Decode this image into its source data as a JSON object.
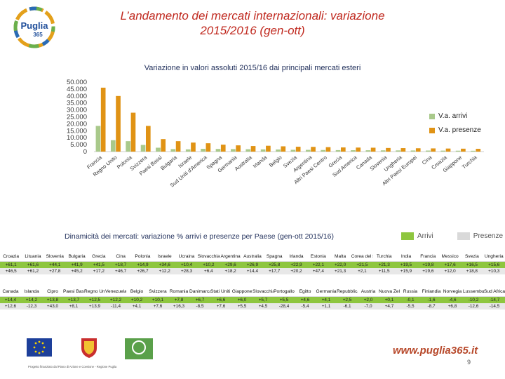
{
  "header": {
    "title_line1": "L’andamento dei mercati internazionali: variazione",
    "title_line2": "2015/2016 (gen-ott)"
  },
  "logo": {
    "text": "Puglia",
    "sub": "365"
  },
  "chart_data": {
    "type": "bar",
    "title": "Variazione in valori assoluti 2015/16 dai principali mercati esteri",
    "xlabel": "",
    "ylabel": "",
    "ylim": [
      0,
      50000
    ],
    "yticks": [
      "50.000",
      "45.000",
      "40.000",
      "35.000",
      "30.000",
      "25.000",
      "20.000",
      "15.000",
      "10.000",
      "5.000",
      "0"
    ],
    "grid": false,
    "legend_position": "right",
    "categories": [
      "Francia",
      "Regno Unito",
      "Polonia",
      "Svizzera",
      "Paesi Bassi",
      "Bulgaria",
      "Israele",
      "Sud Uniti d'America",
      "Spagna",
      "Germania",
      "Australia",
      "Irlanda",
      "Belgio",
      "Svezia",
      "Argentina",
      "Altri Paesi Centro",
      "Grecia",
      "Sud America",
      "Canada",
      "Slovenia",
      "Ungheria",
      "Altri Paesi Europei",
      "Cina",
      "Croazia",
      "Giappone",
      "Turchia"
    ],
    "series": [
      {
        "name": "V.a. arrivi",
        "color": "#a9c98b",
        "values": [
          18500,
          8200,
          7500,
          4800,
          2800,
          1800,
          1600,
          2000,
          1900,
          1800,
          1700,
          1600,
          1500,
          1300,
          1250,
          1150,
          1050,
          1000,
          950,
          900,
          850,
          800,
          750,
          700,
          650,
          600
        ]
      },
      {
        "name": "V.a. presenze",
        "color": "#e09315",
        "values": [
          46000,
          40000,
          28000,
          18500,
          9000,
          7500,
          6500,
          6000,
          5000,
          4500,
          4000,
          4200,
          3800,
          3500,
          3400,
          3200,
          3000,
          2900,
          2800,
          2600,
          2500,
          2400,
          2300,
          2200,
          2100,
          2000
        ]
      }
    ]
  },
  "dynamics": {
    "title": "Dinamicità dei mercati: variazione % arrivi e presenze per Paese (gen-ott 2015/16)",
    "legend_arrivi": "Arrivi",
    "legend_presenze": "Presenze",
    "arrivi_color": "#8ec63f",
    "presenze_color": "#d9d9d9"
  },
  "table1": {
    "columns": [
      "Croazia",
      "Lituania",
      "Slovenia",
      "Bulgaria",
      "Grecia",
      "Cina",
      "Polonia",
      "Israele",
      "Ucraina",
      "Slovacchia",
      "Argentina",
      "Australia",
      "Spagna",
      "Irlanda",
      "Estonia",
      "Malta",
      "Corea del Sud",
      "Turchia",
      "India",
      "Francia",
      "Messico",
      "Svezia",
      "Ungheria"
    ],
    "arrivi": [
      "+61,1",
      "+61,6",
      "+44,1",
      "+41,9",
      "+41,5",
      "+18,7",
      "+14,9",
      "+34,6",
      "+10,4",
      "+10,2",
      "+29,6",
      "+26,9",
      "+25,8",
      "+22,9",
      "+22,1",
      "+22,0",
      "+21,5",
      "+21,3",
      "+19,5",
      "+19,8",
      "+17,6",
      "+16,5",
      "+15,6"
    ],
    "presenze": [
      "+46,5",
      "+61,2",
      "+27,8",
      "+45,2",
      "+17,2",
      "+46,7",
      "+26,7",
      "+12,2",
      "+28,3",
      "+6,4",
      "+18,2",
      "+14,4",
      "+17,7",
      "+20,2",
      "+47,4",
      "+21,3",
      "+2,1",
      "+11,5",
      "+15,9",
      "+19,6",
      "+12,0",
      "+18,8",
      "+10,3"
    ]
  },
  "table2": {
    "columns": [
      "Canada",
      "Islanda",
      "Cipro",
      "Paesi Bassi",
      "Regno Unito",
      "Venezuela",
      "Belgio",
      "Svizzera",
      "Romania",
      "Danimarca",
      "Stati Uniti d'America",
      "Giappone",
      "Slovacchia",
      "Portogallo",
      "Egitto",
      "Germania",
      "Repubblica Ceca",
      "Austria",
      "Nuova Zelanda",
      "Russia",
      "Finlandia",
      "Norvegia",
      "Lussemburgo",
      "Sud Africa"
    ],
    "arrivi": [
      "+14,4",
      "+14,2",
      "+13,8",
      "+13,7",
      "+12,5",
      "+12,2",
      "+10,2",
      "+10,1",
      "+7,8",
      "+6,7",
      "+6,6",
      "+6,0",
      "+5,7",
      "+5,5",
      "+4,6",
      "+4,1",
      "+2,5",
      "+2,0",
      "+0,1",
      "-0,1",
      "-1,6",
      "-4,6",
      "-10,2",
      "-14,7"
    ],
    "presenze": [
      "+12,6",
      "-12,3",
      "+43,0",
      "+8,1",
      "+13,9",
      "-11,4",
      "+4,1",
      "+7,6",
      "+16,3",
      "-8,5",
      "+7,6",
      "+5,5",
      "+4,5",
      "-28,4",
      "-5,4",
      "+1,1",
      "-6,1",
      "-7,0",
      "+4,7",
      "-5,5",
      "-8,7",
      "+6,8",
      "-12,6",
      "-14,5"
    ]
  },
  "footer": {
    "url": "www.puglia365.it",
    "page": "9",
    "caption": "Progetto finanziato dal Piano di Azione e Coesione - Regione Puglia"
  }
}
